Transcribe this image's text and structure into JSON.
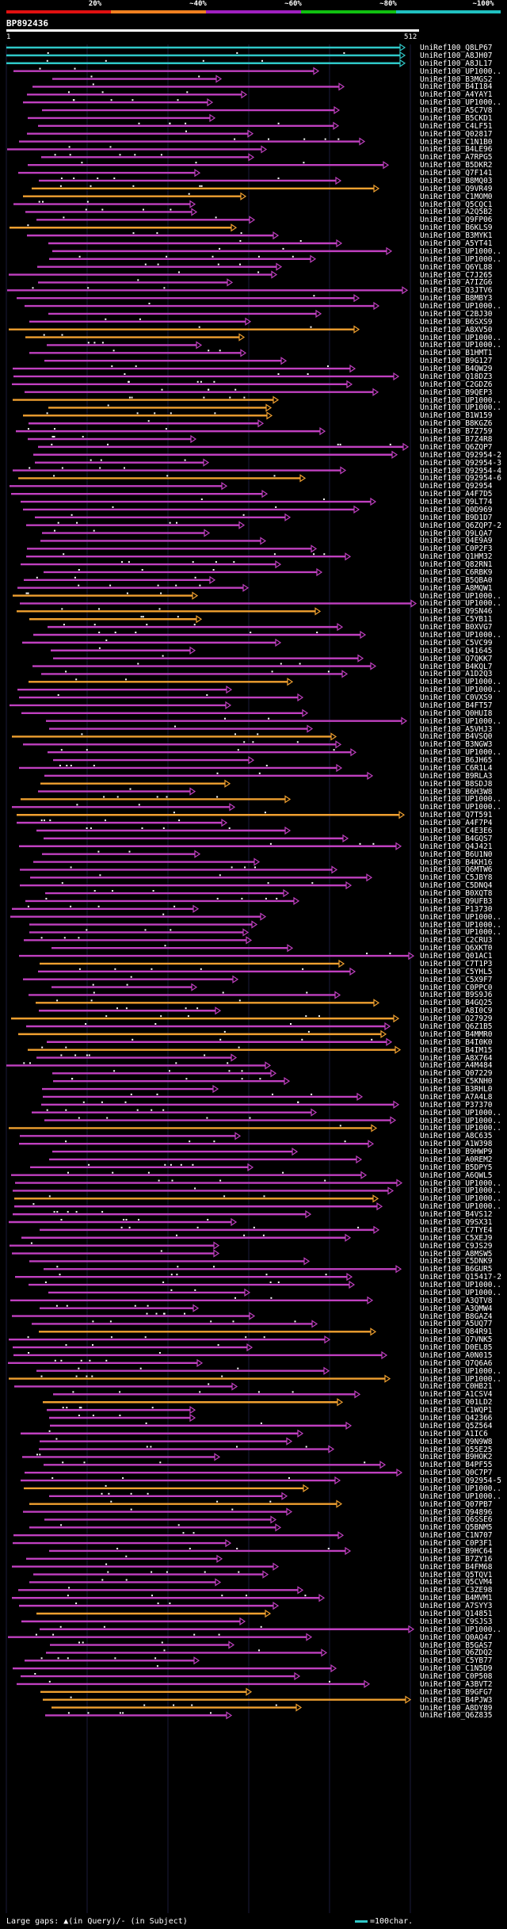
{
  "identity_scale": {
    "labels": [
      "20%",
      "~40%",
      "~60%",
      "~80%",
      "~100%"
    ],
    "segment_colors": [
      "#e01010",
      "#f08020",
      "#a020c0",
      "#10c010",
      "#20c0c0"
    ]
  },
  "query_id": "BP892436",
  "axis": {
    "start": "1",
    "end": "512"
  },
  "colors": {
    "high": "#2fc8c8",
    "mid": "#c040c0",
    "low": "#f0a030",
    "background": "#000000"
  },
  "hits": [
    "UniRef100_Q8LP67",
    "UniRef100_A8JH07",
    "UniRef100_A8JL17",
    "UniRef100_UP1000..",
    "UniRef100_B3MGS2",
    "UniRef100_B4I184",
    "UniRef100_A4YAY1",
    "UniRef100_UP1000..",
    "UniRef100_A5C7V8",
    "UniRef100_B5CKD1",
    "UniRef100_C4LF51",
    "UniRef100_Q02817",
    "UniRef100_C1N1B0",
    "UniRef100_B4LE96",
    "UniRef100_A7RPG5",
    "UniRef100_B5DKR2",
    "UniRef100_Q7F141",
    "UniRef100_B8MQ03",
    "UniRef100_Q9VR49",
    "UniRef100_C1MOM0",
    "UniRef100_Q5CQC1",
    "UniRef100_A2Q5B2",
    "UniRef100_Q9FP06",
    "UniRef100_B6KLS9",
    "UniRef100_B3MYK1",
    "UniRef100_A5YT41",
    "UniRef100_UP1000..",
    "UniRef100_UP1000..",
    "UniRef100_Q6YL88",
    "UniRef100_C7J265",
    "UniRef100_A7IZG6",
    "UniRef100_Q3JTV6",
    "UniRef100_B8MBY3",
    "UniRef100_UP1000..",
    "UniRef100_C2BJ30",
    "UniRef100_B6SXS9",
    "UniRef100_A8XV50",
    "UniRef100_UP1000..",
    "UniRef100_UP1000..",
    "UniRef100_B1HMT1",
    "UniRef100_B9G127",
    "UniRef100_B4QW29",
    "UniRef100_Q18DZ3",
    "UniRef100_C2GDZ6",
    "UniRef100_B9QEP3",
    "UniRef100_UP1000..",
    "UniRef100_UP1000..",
    "UniRef100_B1W159",
    "UniRef100_B8KGZ6",
    "UniRef100_B7Z759",
    "UniRef100_B7Z4R8",
    "UniRef100_Q6ZQP7",
    "UniRef100_Q92954-2",
    "UniRef100_Q92954-3",
    "UniRef100_Q92954-4",
    "UniRef100_Q92954-6",
    "UniRef100_Q92954",
    "UniRef100_A4F7D5",
    "UniRef100_Q9LT74",
    "UniRef100_Q0D969",
    "UniRef100_B9D1D7",
    "UniRef100_Q6ZQP7-2",
    "UniRef100_Q9LQA7",
    "UniRef100_Q4E9A9",
    "UniRef100_C0P2F3",
    "UniRef100_Q1HM32",
    "UniRef100_Q82RN1",
    "UniRef100_C6RBK9",
    "UniRef100_B5QBA0",
    "UniRef100_A8MQW1",
    "UniRef100_UP1000..",
    "UniRef100_UP1000..",
    "UniRef100_Q9SN46",
    "UniRef100_C5YB11",
    "UniRef100_B0XVG7",
    "UniRef100_UP1000..",
    "UniRef100_C5VC99",
    "UniRef100_Q41645",
    "UniRef100_Q7QKK7",
    "UniRef100_B4KQL7",
    "UniRef100_A1D2Q3",
    "UniRef100_UP1000..",
    "UniRef100_UP1000..",
    "UniRef100_C0VXS9",
    "UniRef100_B4FT57",
    "UniRef100_Q0HUI8",
    "UniRef100_UP1000..",
    "UniRef100_A5VHJ3",
    "UniRef100_B4VSQ0",
    "UniRef100_B3NGW3",
    "UniRef100_UP1000..",
    "UniRef100_B6JH65",
    "UniRef100_C6R1L4",
    "UniRef100_B9RLA3",
    "UniRef100_B8SDJ8",
    "UniRef100_B6H3W8",
    "UniRef100_UP1000..",
    "UniRef100_UP1000..",
    "UniRef100_Q7T591",
    "UniRef100_A4F7P4",
    "UniRef100_C4E3E6",
    "UniRef100_B4GQS7",
    "UniRef100_Q4J421",
    "UniRef100_B6U1N0",
    "UniRef100_B4KH16",
    "UniRef100_Q6MTW6",
    "UniRef100_C5JBY8",
    "UniRef100_C5DNQ4",
    "UniRef100_B0XQT8",
    "UniRef100_Q9UFB3",
    "UniRef100_P13730",
    "UniRef100_UP1000..",
    "UniRef100_UP1000..",
    "UniRef100_UP1000..",
    "UniRef100_C2CRU3",
    "UniRef100_Q6XKT0",
    "UniRef100_Q01AC1",
    "UniRef100_C7T1P3",
    "UniRef100_C5YHL5",
    "UniRef100_C5X9F7",
    "UniRef100_C0PPC0",
    "UniRef100_B9S9J6",
    "UniRef100_B4GQ25",
    "UniRef100_A8I0C9",
    "UniRef100_Q27929",
    "UniRef100_Q6Z1B5",
    "UniRef100_B4MMR0",
    "UniRef100_B4I0K0",
    "UniRef100_B4IM15",
    "UniRef100_A8X764",
    "UniRef100_A4M484",
    "UniRef100_Q07229",
    "UniRef100_C5KNH0",
    "UniRef100_B3RHL0",
    "UniRef100_A7A4L8",
    "UniRef100_P37370",
    "UniRef100_UP1000..",
    "UniRef100_UP1000..",
    "UniRef100_UP1000..",
    "UniRef100_A8C635",
    "UniRef100_A1W398",
    "UniRef100_B9HWP9",
    "UniRef100_A0REM2",
    "UniRef100_B5DPY5",
    "UniRef100_A6QWL5",
    "UniRef100_UP1000..",
    "UniRef100_UP1000..",
    "UniRef100_UP1000..",
    "UniRef100_UP1000..",
    "UniRef100_B4VS12",
    "UniRef100_Q9SX31",
    "UniRef100_C7TYE4",
    "UniRef100_C5XEJ9",
    "UniRef100_C9JS29",
    "UniRef100_A8MSW5",
    "UniRef100_C5DNK9",
    "UniRef100_B6GUR5",
    "UniRef100_Q15417-2",
    "UniRef100_UP1000..",
    "UniRef100_UP1000..",
    "UniRef100_A3QTV8",
    "UniRef100_A3QMW4",
    "UniRef100_B8GAZ4",
    "UniRef100_A5UQ77",
    "UniRef100_Q84R91",
    "UniRef100_Q7VNK5",
    "UniRef100_D0EL85",
    "UniRef100_A0N015",
    "UniRef100_Q7Q6A6",
    "UniRef100_UP1000..",
    "UniRef100_UP1000..",
    "UniRef100_C0HB21",
    "UniRef100_A1CSV4",
    "UniRef100_Q01LD2",
    "UniRef100_C1WQP1",
    "UniRef100_Q42366",
    "UniRef100_Q5Z564",
    "UniRef100_A1IC6",
    "UniRef100_Q9N9W8",
    "UniRef100_Q55E25",
    "UniRef100_B9HOK2",
    "UniRef100_B4PF55",
    "UniRef100_Q0C7P7",
    "UniRef100_Q92954-5",
    "UniRef100_UP1000..",
    "UniRef100_UP1000..",
    "UniRef100_Q07PB7",
    "UniRef100_Q94896",
    "UniRef100_Q6SSE6",
    "UniRef100_Q5BNM5",
    "UniRef100_C1N707",
    "UniRef100_C0P3F1",
    "UniRef100_B9HC64",
    "UniRef100_B7ZY16",
    "UniRef100_B4FM68",
    "UniRef100_Q5TQV1",
    "UniRef100_Q5CVM4",
    "UniRef100_C3ZE98",
    "UniRef100_B4MVM1",
    "UniRef100_A7SYY3",
    "UniRef100_Q14851",
    "UniRef100_C9SJS3",
    "UniRef100_UP1000..",
    "UniRef100_Q0AQ47",
    "UniRef100_B5GAS7",
    "UniRef100_Q6ZDQ2",
    "UniRef100_C5YB77",
    "UniRef100_C1N5D9",
    "UniRef100_C0P508",
    "UniRef100_A3BVT2",
    "UniRef100_B9GFG7",
    "UniRef100_B4PJW3",
    "UniRef100_A8DY89",
    "UniRef100_Q6Z835"
  ],
  "legend": {
    "left_text": "Large gaps: ▲(in Query)/- (in Subject)",
    "right_text": "=100char."
  }
}
